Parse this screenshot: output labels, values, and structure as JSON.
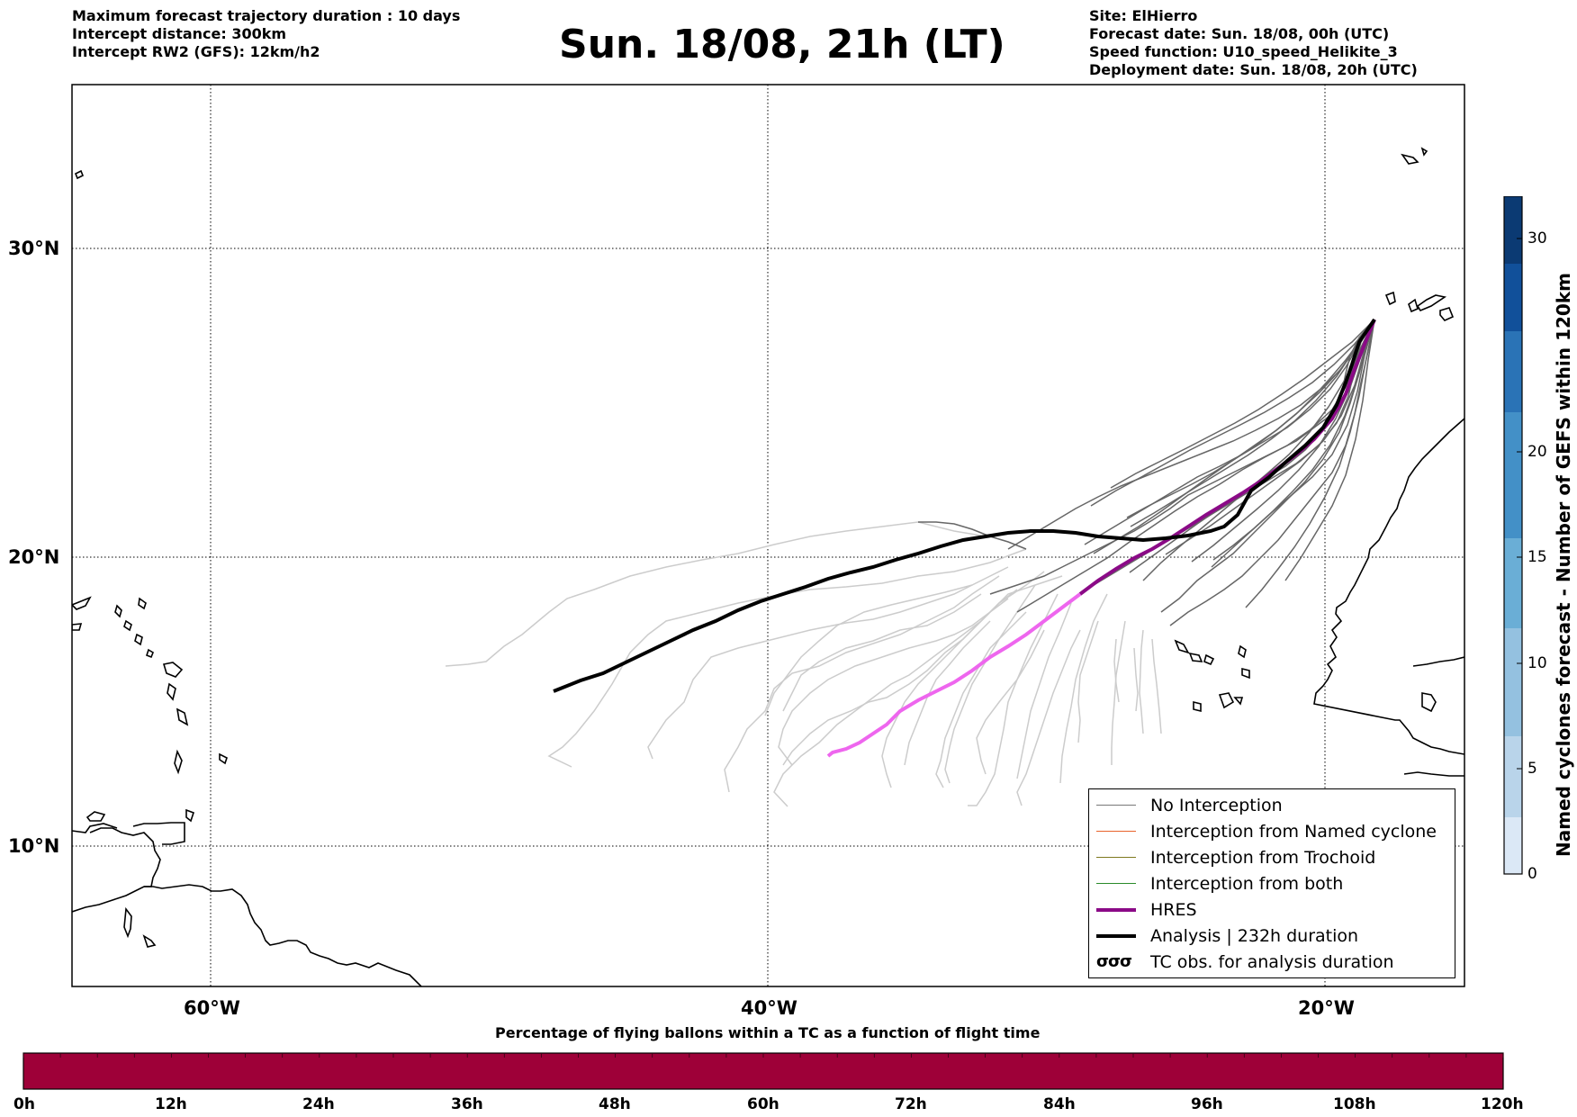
{
  "header": {
    "left": [
      "Maximum forecast trajectory duration : 10 days",
      "Intercept distance: 300km",
      "Intercept RW2 (GFS):  12km/h2"
    ],
    "title": "Sun. 18/08, 21h (LT)",
    "right": [
      "Site: ElHierro",
      "Forecast date: Sun. 18/08, 00h (UTC)",
      "Speed function: U10_speed_Helikite_3",
      "Deployment date: Sun. 18/08, 20h (UTC)"
    ]
  },
  "map": {
    "lat_labels": [
      "30°N",
      "20°N",
      "10°N"
    ],
    "lon_labels": [
      "60°W",
      "40°W",
      "20°W"
    ],
    "lat_range": [
      4.7,
      34.0
    ],
    "lon_range": [
      -65.0,
      -15.0
    ],
    "grid": "dotted",
    "colors": {
      "no_interception": "#666666",
      "no_interception_late": "#c8c8c8",
      "named_cyclone": "#e8632b",
      "trochoid": "#7e7a1f",
      "both": "#2a8a2a",
      "hres": "#8b0a87",
      "hres_late": "#ee66ee",
      "analysis": "#000000"
    }
  },
  "legend": {
    "placement": "lower-right",
    "items": [
      {
        "label": "No Interception",
        "color": "#777777"
      },
      {
        "label": "Interception from Named cyclone",
        "color": "#e8632b"
      },
      {
        "label": "Interception from Trochoid",
        "color": "#7e7a1f"
      },
      {
        "label": "Interception from both",
        "color": "#2a8a2a"
      },
      {
        "label": "HRES",
        "color": "#8b0a87"
      },
      {
        "label": "Analysis | 232h duration",
        "color": "#000000"
      },
      {
        "label": "TC obs. for analysis duration",
        "icon": "cyclone-symbols-icon"
      }
    ]
  },
  "colorbar": {
    "label": "Named cyclones forecast - Number of GEFS within 120km",
    "ticks": [
      "0",
      "5",
      "10",
      "15",
      "20",
      "30"
    ],
    "range": [
      0,
      32
    ],
    "colors": [
      "#dbe8f6",
      "#b9d4ea",
      "#94c1e0",
      "#6aaed6",
      "#4390c7",
      "#2a73b6",
      "#11509a",
      "#0b3a73"
    ]
  },
  "bottom_bar": {
    "title": "Percentage of flying ballons within a TC as a function of flight time",
    "ticks": [
      "0h",
      "12h",
      "24h",
      "36h",
      "48h",
      "60h",
      "72h",
      "84h",
      "96h",
      "108h",
      "120h"
    ],
    "fill_color": "#9e0038"
  }
}
